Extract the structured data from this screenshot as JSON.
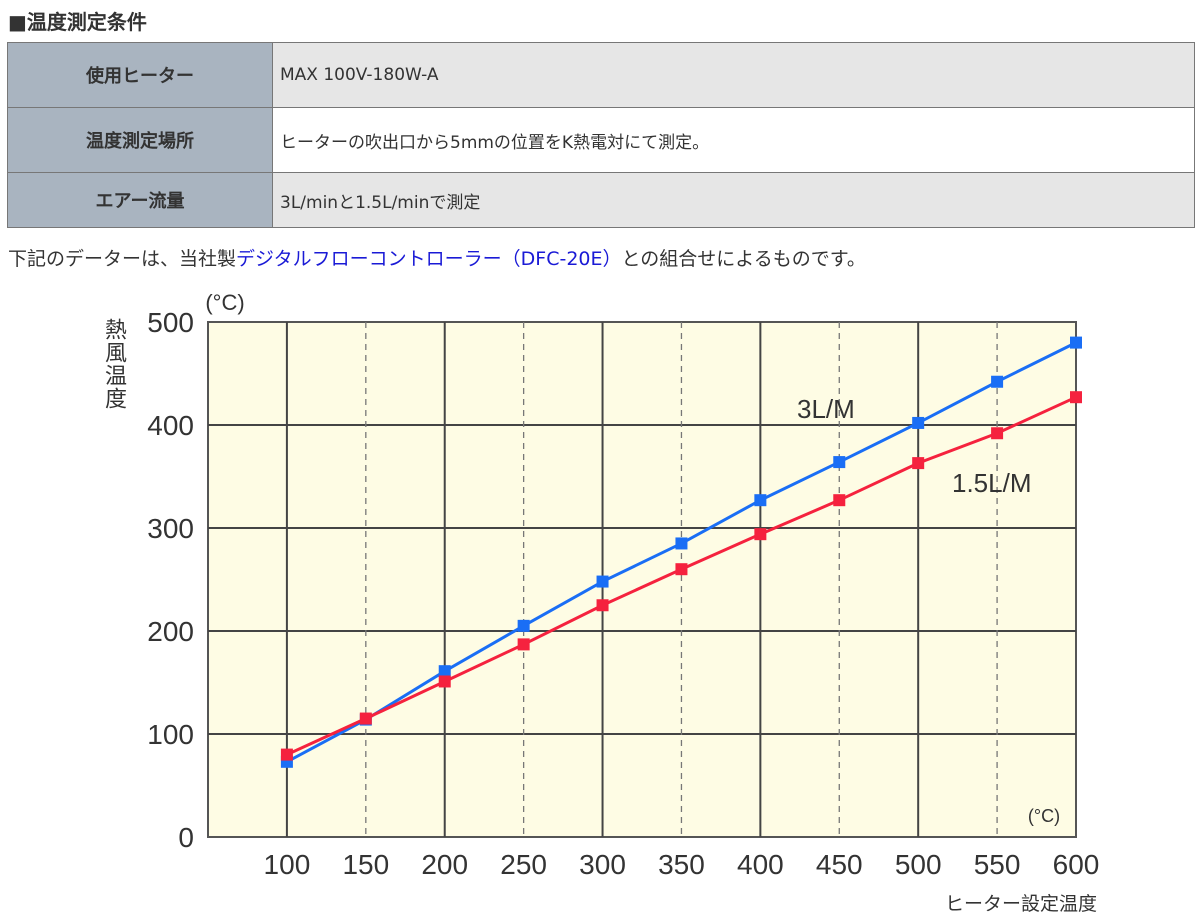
{
  "section_title": "■温度測定条件",
  "conditions": [
    {
      "label": "使用ヒーター",
      "value": "MAX 100V-180W-A"
    },
    {
      "label": "温度測定場所",
      "value": "ヒーターの吹出口から5mmの位置をK熱電対にて測定。"
    },
    {
      "label": "エアー流量",
      "value": "3L/minと1.5L/minで測定"
    }
  ],
  "note": {
    "before": "下記のデーターは、当社製",
    "link": "デジタルフローコントローラー（DFC-20E）",
    "after": "との組合せによるものです。"
  },
  "chart_data": {
    "type": "line",
    "x": [
      100,
      150,
      200,
      250,
      300,
      350,
      400,
      450,
      500,
      550,
      600
    ],
    "xlim": [
      50,
      600
    ],
    "ylim": [
      0,
      500
    ],
    "xticks": [
      "100",
      "150",
      "200",
      "250",
      "300",
      "350",
      "400",
      "450",
      "500",
      "550",
      "600"
    ],
    "yticks": [
      "0",
      "100",
      "200",
      "300",
      "400",
      "500"
    ],
    "xlabel": "ヒーター設定温度",
    "xunit": "(°C)",
    "ylabel": "熱風温度",
    "yunit": "(°C)",
    "grid": true,
    "background": "#fefce4",
    "series": [
      {
        "name": "3L/M",
        "color": "#1a6ef5",
        "values": [
          73,
          114,
          161,
          205,
          248,
          285,
          327,
          364,
          402,
          442,
          480
        ]
      },
      {
        "name": "1.5L/M",
        "color": "#f5223e",
        "values": [
          80,
          115,
          151,
          187,
          225,
          260,
          294,
          327,
          363,
          392,
          427
        ]
      }
    ]
  }
}
